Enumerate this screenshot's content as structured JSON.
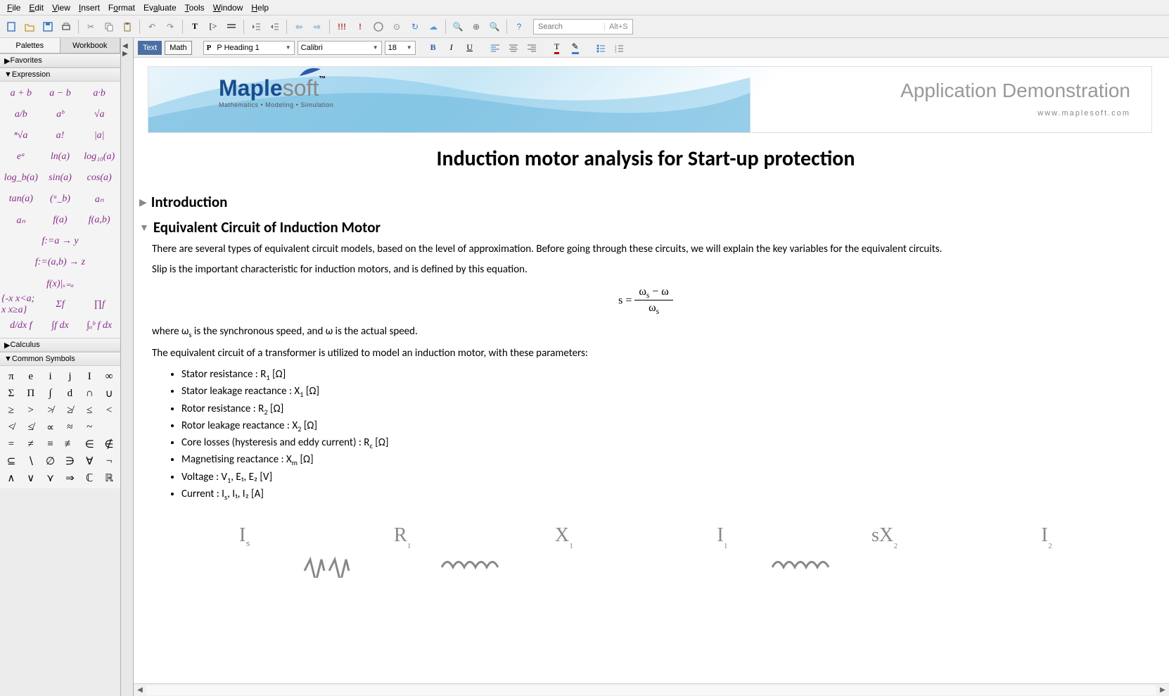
{
  "menu": {
    "file": "File",
    "edit": "Edit",
    "view": "View",
    "insert": "Insert",
    "format": "Format",
    "evaluate": "Evaluate",
    "tools": "Tools",
    "window": "Window",
    "help": "Help"
  },
  "toolbar": {
    "search_placeholder": "Search",
    "search_hint": "Alt+S"
  },
  "sidebar": {
    "tabs": {
      "palettes": "Palettes",
      "workbook": "Workbook"
    },
    "sections": {
      "favorites": "Favorites",
      "expression": "Expression",
      "calculus": "Calculus",
      "common_symbols": "Common Symbols"
    },
    "expressions": [
      "a + b",
      "a − b",
      "a·b",
      "a/b",
      "aᵇ",
      "√a",
      "ⁿ√a",
      "a!",
      "|a|",
      "eᵃ",
      "ln(a)",
      "",
      "log₁₀(a)",
      "log_b(a)",
      "",
      "sin(a)",
      "cos(a)",
      "",
      "tan(a)",
      "(ᵃ_b)",
      "aₙ",
      "aₙ",
      "f(a)",
      "f(a,b)",
      "f:=a → y",
      "",
      "",
      "f:=(a,b) → z",
      "",
      "",
      "f(x)|ₓ₌ₐ",
      "",
      "",
      "{-x x<a; x x≥a}",
      "Σf",
      "",
      "∏f",
      "d/dx f",
      "∫f dx",
      "∫ₐᵇ f dx",
      "",
      ""
    ],
    "symbols": [
      "π",
      "e",
      "i",
      "j",
      "I",
      "∞",
      "Σ",
      "Π",
      "∫",
      "d",
      "∩",
      "∪",
      "≥",
      ">",
      "≯",
      "≱",
      "≤",
      "<",
      "≮",
      "≰",
      "∝",
      "≈",
      "~",
      "",
      "=",
      "≠",
      "≡",
      "≢",
      "∈",
      "∉",
      "⊆",
      "∖",
      "∅",
      "∋",
      "∀",
      "¬",
      "∧",
      "∨",
      "⋎",
      "⇒",
      "ℂ",
      "ℝ"
    ]
  },
  "format_bar": {
    "mode_text": "Text",
    "mode_math": "Math",
    "style": "P Heading 1",
    "font": "Calibri",
    "size": "18"
  },
  "banner": {
    "brand_main": "Maple",
    "brand_suffix": "soft",
    "tagline": "Mathematics • Modeling • Simulation",
    "app_demo": "Application Demonstration",
    "url": "www.maplesoft.com"
  },
  "document": {
    "title": "Induction motor analysis for Start-up protection",
    "sect_intro": "Introduction",
    "sect_equiv": "Equivalent Circuit of Induction Motor",
    "p1": "There are several types of equivalent circuit models, based on the level of approximation. Before going through these circuits, we will explain the key variables for the equivalent circuits.",
    "p2": "Slip is the important characteristic for induction motors, and is defined by this equation.",
    "p3_prefix": "where ω",
    "p3_mid": " is the synchronous speed, and ω is the actual speed.",
    "p4": "The equivalent circuit of a transformer is utilized to model an induction motor, with these parameters:",
    "bullets": [
      {
        "label": "Stator resistance : R",
        "sub": "1",
        "unit": " [Ω]"
      },
      {
        "label": "Stator leakage reactance : X",
        "sub": "1",
        "unit": " [Ω]"
      },
      {
        "label": "Rotor resistance : R",
        "sub": "2",
        "unit": " [Ω]"
      },
      {
        "label": "Rotor leakage reactance : X",
        "sub": "2",
        "unit": " [Ω]"
      },
      {
        "label": "Core losses (hysteresis and eddy current) : R",
        "sub": "c",
        "unit": " [Ω]"
      },
      {
        "label": "Magnetising reactance : X",
        "sub": "m",
        "unit": " [Ω]"
      },
      {
        "label": "Voltage : V",
        "sub": "1",
        "unit": ", E₁, E₂ [V]"
      },
      {
        "label": "Current : I",
        "sub": "s",
        "unit": ", I₁, I₂ [A]"
      }
    ],
    "circuit_labels": [
      "Iₛ",
      "R₁",
      "X₁",
      "I₁",
      "sX₂",
      "I₂"
    ]
  },
  "colors": {
    "expr_purple": "#8a2c8a",
    "banner_blue": "#1a4d8c",
    "banner_grey": "#888888",
    "circuit_grey": "#888888"
  }
}
